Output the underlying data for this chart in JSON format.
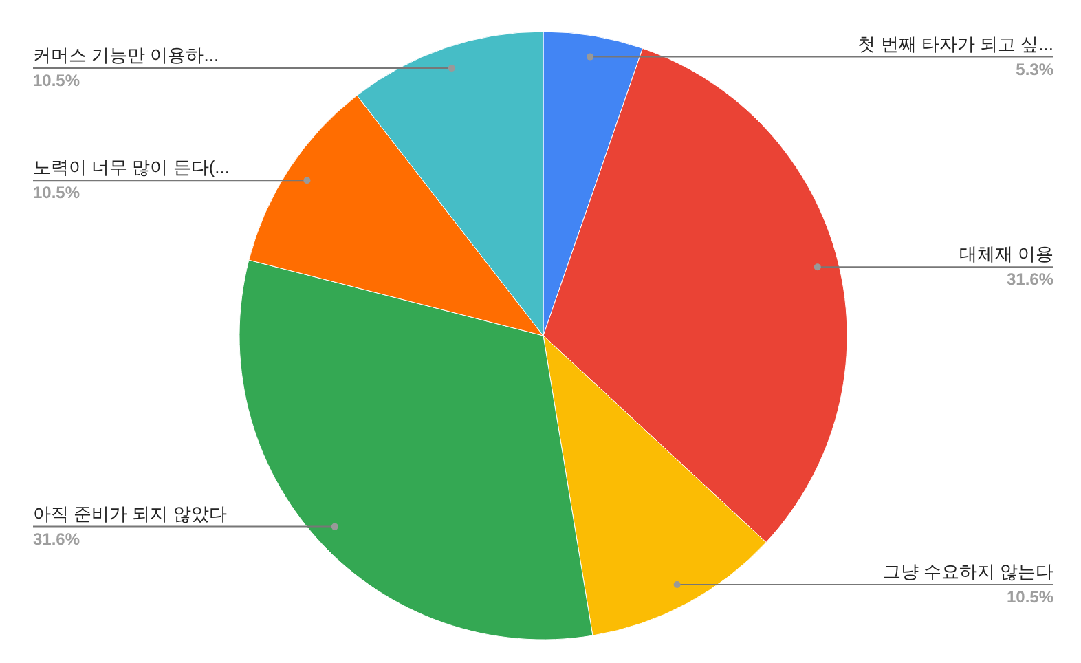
{
  "chart_data": {
    "type": "pie",
    "categories": [
      "첫 번째 타자가 되고 싶...",
      "대체재 이용",
      "그냥 수요하지 않는다",
      "아직 준비가 되지 않았다",
      "노력이 너무 많이 든다(...",
      "커머스 기능만 이용하..."
    ],
    "values": [
      5.3,
      31.6,
      10.5,
      31.6,
      10.5,
      10.5
    ],
    "colors": [
      "#4285f4",
      "#ea4335",
      "#fbbc04",
      "#34a853",
      "#ff6d01",
      "#46bdc6"
    ],
    "value_labels": [
      "5.3%",
      "31.6%",
      "10.5%",
      "31.6%",
      "10.5%",
      "10.5%"
    ]
  }
}
